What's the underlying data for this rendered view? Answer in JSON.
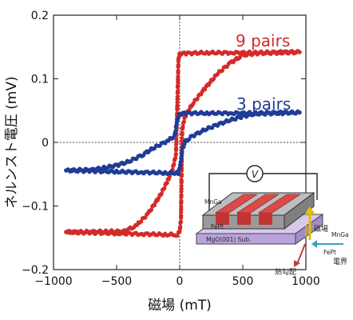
{
  "chart_data": {
    "type": "scatter",
    "title": "",
    "xlabel": "磁場 (mT)",
    "ylabel": "ネルンスト電圧 (mV)",
    "xlim": [
      -1000,
      1000
    ],
    "ylim": [
      -0.2,
      0.2
    ],
    "x_ticks": [
      -1000,
      -500,
      0,
      500,
      1000
    ],
    "y_ticks": [
      -0.2,
      -0.1,
      0,
      0.1,
      0.2
    ],
    "x_tick_labels": [
      "−1000",
      "−500",
      "0",
      "500",
      "1000"
    ],
    "y_tick_labels": [
      "−0.2",
      "−0.1",
      "0",
      "0.1",
      "0.2"
    ],
    "grid": false,
    "reference_lines": "dotted lines at x = 0 and y = 0",
    "series": [
      {
        "name": "9 pairs",
        "color": "#d42a2a",
        "branch_down": [
          [
            950,
            0.142
          ],
          [
            800,
            0.142
          ],
          [
            600,
            0.141
          ],
          [
            400,
            0.141
          ],
          [
            200,
            0.141
          ],
          [
            50,
            0.14
          ],
          [
            0,
            0.14
          ],
          [
            -10,
            0.13
          ],
          [
            -20,
            0.05
          ],
          [
            -30,
            -0.02
          ],
          [
            -60,
            -0.045
          ],
          [
            -100,
            -0.062
          ],
          [
            -150,
            -0.082
          ],
          [
            -250,
            -0.112
          ],
          [
            -350,
            -0.132
          ],
          [
            -450,
            -0.14
          ],
          [
            -600,
            -0.14
          ],
          [
            -800,
            -0.141
          ],
          [
            -900,
            -0.141
          ]
        ],
        "branch_up": [
          [
            -900,
            -0.141
          ],
          [
            -700,
            -0.142
          ],
          [
            -500,
            -0.143
          ],
          [
            -300,
            -0.144
          ],
          [
            -100,
            -0.145
          ],
          [
            -20,
            -0.145
          ],
          [
            0,
            -0.14
          ],
          [
            10,
            -0.12
          ],
          [
            20,
            0.02
          ],
          [
            40,
            0.04
          ],
          [
            100,
            0.06
          ],
          [
            200,
            0.085
          ],
          [
            300,
            0.108
          ],
          [
            400,
            0.125
          ],
          [
            500,
            0.137
          ],
          [
            600,
            0.14
          ],
          [
            800,
            0.141
          ],
          [
            950,
            0.142
          ]
        ]
      },
      {
        "name": "3 pairs",
        "color": "#1f3c96",
        "branch_down": [
          [
            950,
            0.047
          ],
          [
            800,
            0.047
          ],
          [
            600,
            0.046
          ],
          [
            400,
            0.046
          ],
          [
            200,
            0.046
          ],
          [
            50,
            0.046
          ],
          [
            0,
            0.045
          ],
          [
            -20,
            0.035
          ],
          [
            -40,
            0.01
          ],
          [
            -100,
            0.002
          ],
          [
            -200,
            -0.008
          ],
          [
            -300,
            -0.02
          ],
          [
            -400,
            -0.03
          ],
          [
            -500,
            -0.036
          ],
          [
            -600,
            -0.04
          ],
          [
            -700,
            -0.043
          ],
          [
            -900,
            -0.044
          ]
        ],
        "branch_up": [
          [
            -900,
            -0.044
          ],
          [
            -700,
            -0.045
          ],
          [
            -500,
            -0.046
          ],
          [
            -300,
            -0.047
          ],
          [
            -100,
            -0.048
          ],
          [
            -10,
            -0.048
          ],
          [
            10,
            -0.03
          ],
          [
            20,
            -0.01
          ],
          [
            50,
            0.002
          ],
          [
            100,
            0.01
          ],
          [
            200,
            0.02
          ],
          [
            300,
            0.028
          ],
          [
            400,
            0.035
          ],
          [
            500,
            0.041
          ],
          [
            600,
            0.045
          ],
          [
            800,
            0.046
          ],
          [
            950,
            0.047
          ]
        ]
      }
    ],
    "annotations": [
      "9 pairs",
      "3 pairs"
    ],
    "inset": {
      "voltmeter": "V",
      "label_mnga_left": "MnGa",
      "label_fept_left": "FePt",
      "label_substrate": "MgO(001) Sub.",
      "label_field": "磁場",
      "label_mnga_right": "MnGa",
      "label_fept_right": "FePt",
      "label_efield": "電界",
      "label_gradient": "熱勾配"
    }
  }
}
